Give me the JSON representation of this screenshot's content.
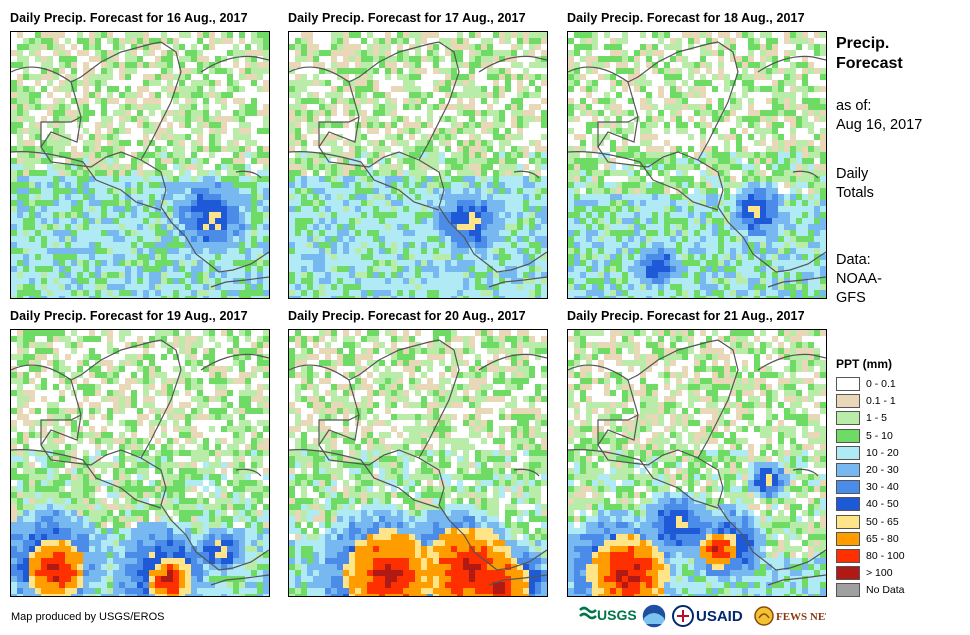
{
  "panels": [
    {
      "title": "Daily Precip. Forecast for 16 Aug., 2017"
    },
    {
      "title": "Daily Precip. Forecast for 17 Aug., 2017"
    },
    {
      "title": "Daily Precip. Forecast for 18 Aug., 2017"
    },
    {
      "title": "Daily Precip. Forecast for 19 Aug., 2017"
    },
    {
      "title": "Daily Precip. Forecast for 20 Aug., 2017"
    },
    {
      "title": "Daily Precip. Forecast for 21 Aug., 2017"
    }
  ],
  "sidebar": {
    "title_line1": "Precip.",
    "title_line2": "Forecast",
    "asof_line1": "as of:",
    "asof_line2": "Aug 16, 2017",
    "totals_line1": "Daily",
    "totals_line2": "Totals",
    "data_line1": "Data:",
    "data_line2": "NOAA-",
    "data_line3": "GFS"
  },
  "legend": {
    "title": "PPT (mm)",
    "items": [
      {
        "label": "0 - 0.1",
        "color": "#ffffff"
      },
      {
        "label": "0.1 - 1",
        "color": "#e8d8b8"
      },
      {
        "label": "1 - 5",
        "color": "#b8eca8"
      },
      {
        "label": "5 - 10",
        "color": "#6edc64"
      },
      {
        "label": "10 - 20",
        "color": "#b0eaf4"
      },
      {
        "label": "20 - 30",
        "color": "#78b8f0"
      },
      {
        "label": "30 - 40",
        "color": "#4a8ce8"
      },
      {
        "label": "40 - 50",
        "color": "#1e5ad8"
      },
      {
        "label": "50 - 65",
        "color": "#ffe488"
      },
      {
        "label": "65 - 80",
        "color": "#ff9c00"
      },
      {
        "label": "80 - 100",
        "color": "#ff3000"
      },
      {
        "label": "> 100",
        "color": "#b01a14"
      },
      {
        "label": "No Data",
        "color": "#a0a0a0"
      }
    ]
  },
  "footer": {
    "credit": "Map produced by USGS/EROS",
    "logos": [
      "USGS",
      "NOAA",
      "USAID",
      "FEWS NET"
    ]
  },
  "coast_color": "#555555"
}
